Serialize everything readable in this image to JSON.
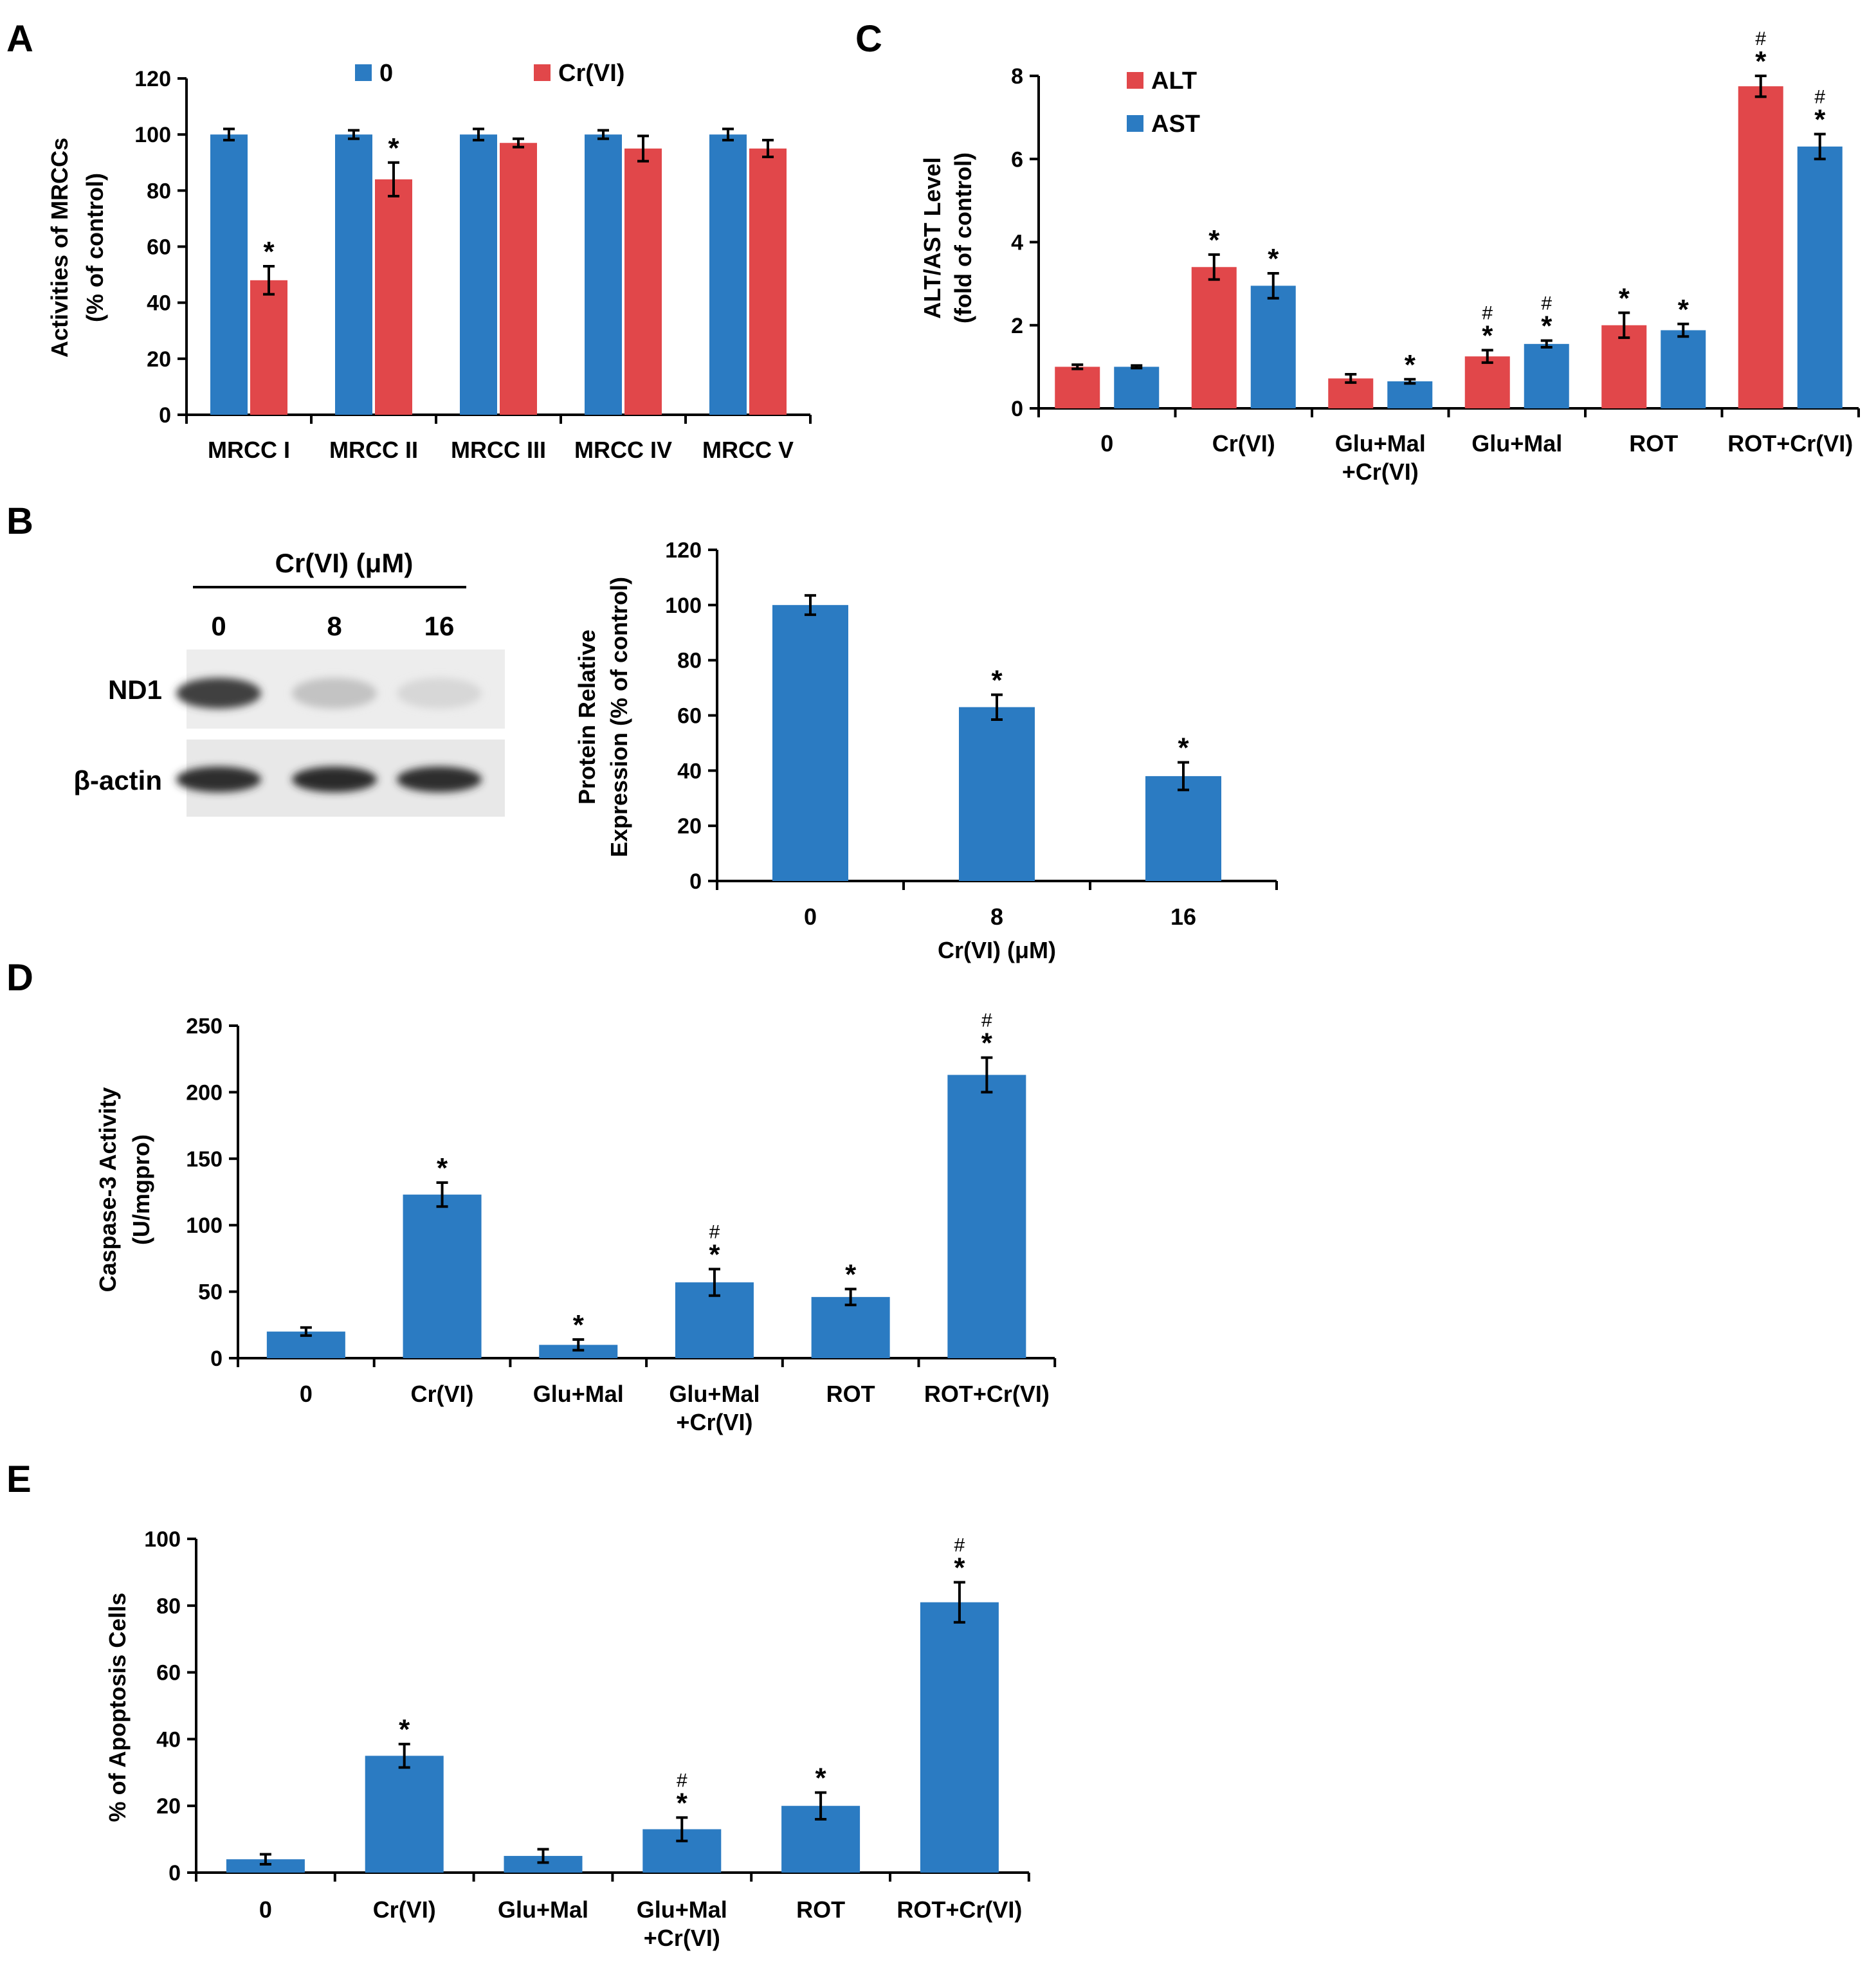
{
  "colors": {
    "blue": "#2b7bc2",
    "red": "#e1474a",
    "axis": "#000000"
  },
  "panel_letters": [
    "A",
    "B",
    "C",
    "D",
    "E"
  ],
  "chart_data": [
    {
      "id": "A",
      "type": "bar",
      "title": "",
      "ylabel": [
        "Activities of MRCCs",
        "(% of  control)"
      ],
      "xlabel": "",
      "ylim": [
        0,
        120
      ],
      "yticks": [
        0,
        20,
        40,
        60,
        80,
        100,
        120
      ],
      "categories": [
        "MRCC I",
        "MRCC II",
        "MRCC III",
        "MRCC IV",
        "MRCC V"
      ],
      "legend_position": "top",
      "series": [
        {
          "name": "0",
          "color": "blue",
          "values": [
            100,
            100,
            100,
            100,
            100
          ],
          "errors": [
            2,
            1.5,
            2,
            1.5,
            2
          ],
          "marks": [
            "",
            "",
            "",
            "",
            ""
          ]
        },
        {
          "name": "Cr(VI)",
          "color": "red",
          "values": [
            48,
            84,
            97,
            95,
            95
          ],
          "errors": [
            5,
            6,
            1.5,
            4.5,
            3
          ],
          "marks": [
            "*",
            "*",
            "",
            "",
            ""
          ]
        }
      ]
    },
    {
      "id": "C",
      "type": "bar",
      "title": "",
      "ylabel": [
        "ALT/AST Level",
        "(fold of  control)"
      ],
      "xlabel": "",
      "ylim": [
        0,
        8
      ],
      "yticks": [
        0,
        2,
        4,
        6,
        8
      ],
      "categories": [
        "0",
        "Cr(VI)",
        "Glu+Mal|+Cr(VI)",
        "Glu+Mal",
        "ROT",
        "ROT+Cr(VI)"
      ],
      "category_order_note": "",
      "legend_position": "top-left",
      "series": [
        {
          "name": "ALT",
          "color": "red",
          "values": [
            1.0,
            3.4,
            0.72,
            1.25,
            2.0,
            7.75
          ],
          "errors": [
            0.05,
            0.3,
            0.1,
            0.15,
            0.3,
            0.25
          ],
          "marks": [
            "",
            "*",
            "",
            "*#",
            "*",
            "*#"
          ]
        },
        {
          "name": "AST",
          "color": "blue",
          "values": [
            1.0,
            2.95,
            0.65,
            1.55,
            1.88,
            6.3
          ],
          "errors": [
            0.03,
            0.3,
            0.05,
            0.08,
            0.15,
            0.3
          ],
          "marks": [
            "",
            "*",
            "*",
            "*#",
            "*",
            "*#"
          ]
        }
      ]
    },
    {
      "id": "B",
      "type": "bar",
      "title": "",
      "ylabel": [
        "Protein Relative",
        "Expression (% of  control)"
      ],
      "xlabel": "Cr(VI) (μM)",
      "ylim": [
        0,
        120
      ],
      "yticks": [
        0,
        20,
        40,
        60,
        80,
        100,
        120
      ],
      "categories": [
        "0",
        "8",
        "16"
      ],
      "series": [
        {
          "name": "ND1",
          "color": "blue",
          "values": [
            100,
            63,
            38
          ],
          "errors": [
            3.5,
            4.5,
            5
          ],
          "marks": [
            "",
            "*",
            "*"
          ]
        }
      ]
    },
    {
      "id": "D",
      "type": "bar",
      "title": "",
      "ylabel": [
        "Caspase-3 Activity",
        "(U/mgpro)"
      ],
      "xlabel": "",
      "ylim": [
        0,
        250
      ],
      "yticks": [
        0,
        50,
        100,
        150,
        200,
        250
      ],
      "categories": [
        "0",
        "Cr(VI)",
        "Glu+Mal",
        "Glu+Mal|+Cr(VI)",
        "ROT",
        "ROT+Cr(VI)"
      ],
      "series": [
        {
          "name": "Caspase-3",
          "color": "blue",
          "values": [
            20,
            123,
            10,
            57,
            46,
            213
          ],
          "errors": [
            3,
            9,
            4,
            10,
            6,
            13
          ],
          "marks": [
            "",
            "*",
            "*",
            "*#",
            "*",
            "*#"
          ]
        }
      ]
    },
    {
      "id": "E",
      "type": "bar",
      "title": "",
      "ylabel": [
        "% of Apoptosis Cells"
      ],
      "xlabel": "",
      "ylim": [
        0,
        100
      ],
      "yticks": [
        0,
        20,
        40,
        60,
        80,
        100
      ],
      "categories": [
        "0",
        "Cr(VI)",
        "Glu+Mal",
        "Glu+Mal|+Cr(VI)",
        "ROT",
        "ROT+Cr(VI)"
      ],
      "series": [
        {
          "name": "Apoptosis",
          "color": "blue",
          "values": [
            4,
            35,
            5,
            13,
            20,
            81
          ],
          "errors": [
            1.5,
            3.5,
            2,
            3.5,
            4,
            6
          ],
          "marks": [
            "",
            "*",
            "",
            "*#",
            "*",
            "*#"
          ]
        }
      ]
    }
  ],
  "western_blot": {
    "treatment_label": "Cr(VI) (μM)",
    "lanes": [
      "0",
      "8",
      "16"
    ],
    "rows": [
      {
        "label": "ND1",
        "intensities": [
          0.85,
          0.2,
          0.1
        ]
      },
      {
        "label": "β-actin",
        "intensities": [
          0.95,
          0.97,
          0.95
        ]
      }
    ]
  }
}
